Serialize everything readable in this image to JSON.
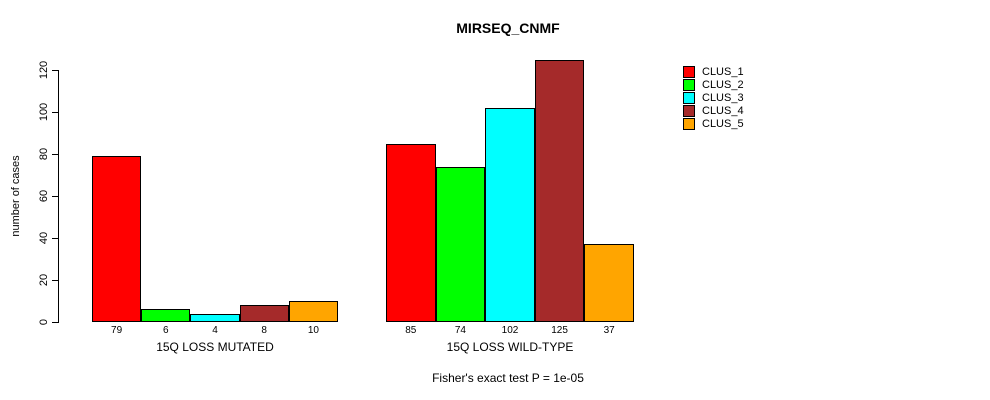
{
  "chart_data": {
    "type": "bar",
    "title": "MIRSEQ_CNMF",
    "xlabel": "",
    "ylabel": "number of cases",
    "ylim": [
      0,
      120
    ],
    "yticks": [
      0,
      20,
      40,
      60,
      80,
      100,
      120
    ],
    "grid": false,
    "legend_position": "top-right",
    "bar_value_labels": true,
    "categories": [
      "15Q LOSS MUTATED",
      "15Q LOSS WILD-TYPE"
    ],
    "series": [
      {
        "name": "CLUS_1",
        "color": "#FF0000",
        "values": [
          79,
          85
        ]
      },
      {
        "name": "CLUS_2",
        "color": "#00FF00",
        "values": [
          6,
          74
        ]
      },
      {
        "name": "CLUS_3",
        "color": "#00FFFF",
        "values": [
          4,
          102
        ]
      },
      {
        "name": "CLUS_4",
        "color": "#A52A2A",
        "values": [
          8,
          125
        ]
      },
      {
        "name": "CLUS_5",
        "color": "#FFA500",
        "values": [
          10,
          37
        ]
      }
    ],
    "annotation": "Fisher's exact test P = 1e-05"
  },
  "colors": {
    "background": "#FFFFFF",
    "axis": "#000000",
    "text": "#000000"
  }
}
